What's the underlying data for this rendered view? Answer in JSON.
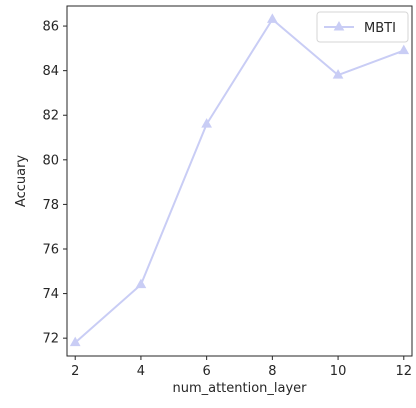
{
  "chart_data": {
    "type": "line",
    "xlabel": "num_attention_layer",
    "ylabel": "Accuary",
    "xlim": [
      1.75,
      12.25
    ],
    "ylim": [
      71.2,
      86.9
    ],
    "xticks": [
      2,
      4,
      6,
      8,
      10,
      12
    ],
    "yticks": [
      72,
      74,
      76,
      78,
      80,
      82,
      84,
      86
    ],
    "grid": false,
    "legend": "top-right",
    "series": [
      {
        "name": "MBTI",
        "color": "#c9cdf5",
        "marker": "triangle",
        "x": [
          2,
          4,
          6,
          8,
          10,
          12
        ],
        "y": [
          71.8,
          74.4,
          81.6,
          86.3,
          83.8,
          84.9
        ]
      }
    ]
  }
}
